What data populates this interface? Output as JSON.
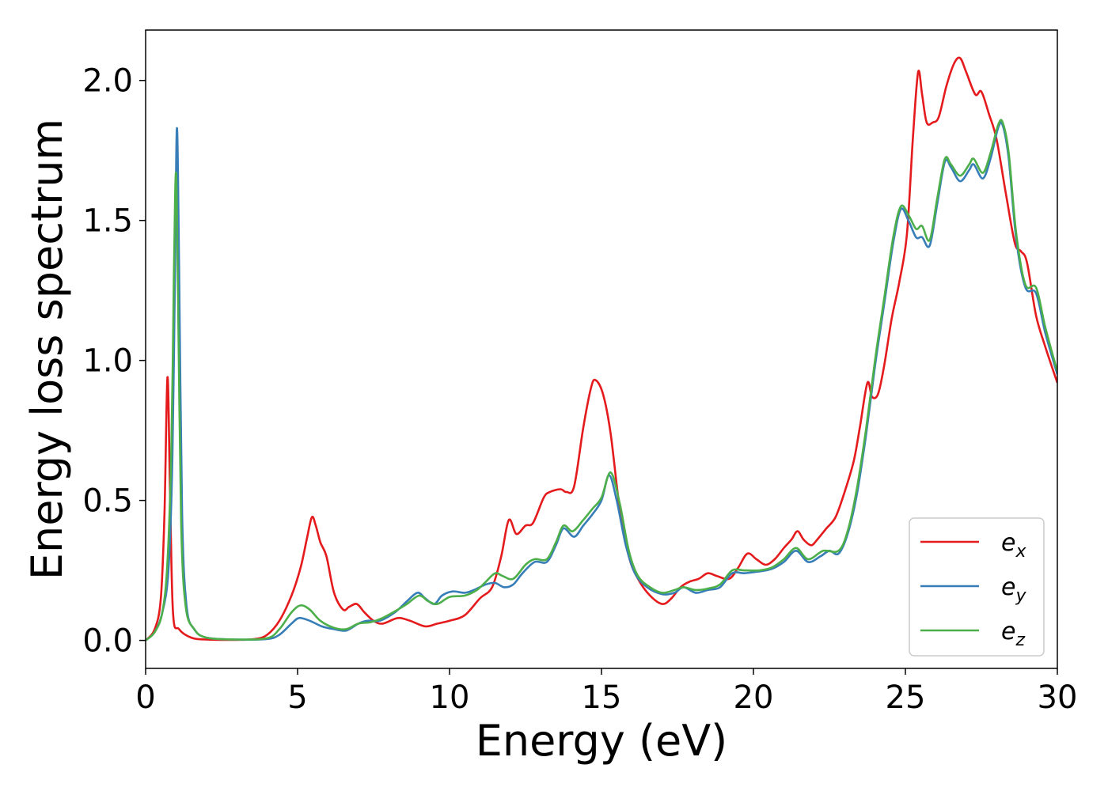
{
  "chart_data": {
    "type": "line",
    "xlabel": "Energy (eV)",
    "ylabel": "Energy loss spectrum",
    "xlim": [
      0,
      30
    ],
    "ylim": [
      -0.1,
      2.18
    ],
    "xticks": [
      "0",
      "5",
      "10",
      "15",
      "20",
      "25",
      "30"
    ],
    "yticks": [
      "0.0",
      "0.5",
      "1.0",
      "1.5",
      "2.0"
    ],
    "grid": false,
    "legend_position": "bottom-right",
    "series": [
      {
        "name": "e",
        "subscript": "x",
        "color": "#e41a1c",
        "points": [
          [
            0,
            0
          ],
          [
            0.3,
            0.04
          ],
          [
            0.5,
            0.15
          ],
          [
            0.62,
            0.45
          ],
          [
            0.72,
            0.94
          ],
          [
            0.8,
            0.55
          ],
          [
            0.9,
            0.1
          ],
          [
            1.1,
            0.04
          ],
          [
            1.5,
            0.01
          ],
          [
            2,
            0.003
          ],
          [
            3,
            0.002
          ],
          [
            3.6,
            0.005
          ],
          [
            4,
            0.02
          ],
          [
            4.4,
            0.07
          ],
          [
            4.8,
            0.16
          ],
          [
            5.1,
            0.26
          ],
          [
            5.3,
            0.36
          ],
          [
            5.47,
            0.44
          ],
          [
            5.6,
            0.41
          ],
          [
            5.75,
            0.35
          ],
          [
            5.95,
            0.3
          ],
          [
            6.2,
            0.17
          ],
          [
            6.5,
            0.11
          ],
          [
            6.7,
            0.12
          ],
          [
            6.95,
            0.13
          ],
          [
            7.2,
            0.1
          ],
          [
            7.5,
            0.07
          ],
          [
            7.8,
            0.06
          ],
          [
            8.3,
            0.08
          ],
          [
            8.7,
            0.07
          ],
          [
            9.2,
            0.05
          ],
          [
            9.6,
            0.06
          ],
          [
            10,
            0.07
          ],
          [
            10.5,
            0.09
          ],
          [
            11,
            0.15
          ],
          [
            11.4,
            0.19
          ],
          [
            11.7,
            0.3
          ],
          [
            11.95,
            0.43
          ],
          [
            12.2,
            0.38
          ],
          [
            12.5,
            0.41
          ],
          [
            12.75,
            0.42
          ],
          [
            13.1,
            0.51
          ],
          [
            13.3,
            0.53
          ],
          [
            13.65,
            0.54
          ],
          [
            13.85,
            0.53
          ],
          [
            14.1,
            0.55
          ],
          [
            14.4,
            0.76
          ],
          [
            14.65,
            0.9
          ],
          [
            14.8,
            0.93
          ],
          [
            15.05,
            0.88
          ],
          [
            15.3,
            0.74
          ],
          [
            15.6,
            0.47
          ],
          [
            15.9,
            0.3
          ],
          [
            16.2,
            0.22
          ],
          [
            16.6,
            0.16
          ],
          [
            17,
            0.13
          ],
          [
            17.3,
            0.15
          ],
          [
            17.6,
            0.19
          ],
          [
            17.9,
            0.21
          ],
          [
            18.2,
            0.22
          ],
          [
            18.5,
            0.24
          ],
          [
            18.8,
            0.23
          ],
          [
            19.2,
            0.22
          ],
          [
            19.5,
            0.26
          ],
          [
            19.8,
            0.31
          ],
          [
            20.1,
            0.29
          ],
          [
            20.4,
            0.27
          ],
          [
            20.7,
            0.29
          ],
          [
            21,
            0.33
          ],
          [
            21.25,
            0.36
          ],
          [
            21.45,
            0.39
          ],
          [
            21.65,
            0.36
          ],
          [
            21.9,
            0.34
          ],
          [
            22.1,
            0.36
          ],
          [
            22.4,
            0.4
          ],
          [
            22.7,
            0.44
          ],
          [
            23,
            0.53
          ],
          [
            23.3,
            0.64
          ],
          [
            23.5,
            0.76
          ],
          [
            23.75,
            0.92
          ],
          [
            23.9,
            0.87
          ],
          [
            24.1,
            0.88
          ],
          [
            24.3,
            0.98
          ],
          [
            24.55,
            1.15
          ],
          [
            24.8,
            1.28
          ],
          [
            25.05,
            1.45
          ],
          [
            25.25,
            1.8
          ],
          [
            25.42,
            2.03
          ],
          [
            25.55,
            1.95
          ],
          [
            25.7,
            1.85
          ],
          [
            25.9,
            1.85
          ],
          [
            26.1,
            1.87
          ],
          [
            26.35,
            1.98
          ],
          [
            26.6,
            2.06
          ],
          [
            26.8,
            2.08
          ],
          [
            27,
            2.03
          ],
          [
            27.3,
            1.95
          ],
          [
            27.5,
            1.96
          ],
          [
            27.75,
            1.88
          ],
          [
            28,
            1.79
          ],
          [
            28.3,
            1.6
          ],
          [
            28.6,
            1.42
          ],
          [
            28.8,
            1.39
          ],
          [
            29,
            1.35
          ],
          [
            29.3,
            1.16
          ],
          [
            29.6,
            1.05
          ],
          [
            30,
            0.92
          ]
        ]
      },
      {
        "name": "e",
        "subscript": "y",
        "color": "#377eb8",
        "points": [
          [
            0,
            0
          ],
          [
            0.3,
            0.03
          ],
          [
            0.55,
            0.1
          ],
          [
            0.75,
            0.25
          ],
          [
            0.88,
            0.65
          ],
          [
            0.97,
            1.35
          ],
          [
            1.03,
            1.83
          ],
          [
            1.1,
            1.35
          ],
          [
            1.2,
            0.45
          ],
          [
            1.35,
            0.12
          ],
          [
            1.6,
            0.04
          ],
          [
            2,
            0.01
          ],
          [
            3,
            0.003
          ],
          [
            4,
            0.005
          ],
          [
            4.4,
            0.02
          ],
          [
            4.8,
            0.06
          ],
          [
            5.05,
            0.08
          ],
          [
            5.4,
            0.07
          ],
          [
            5.8,
            0.05
          ],
          [
            6.2,
            0.04
          ],
          [
            6.6,
            0.035
          ],
          [
            7,
            0.06
          ],
          [
            7.3,
            0.07
          ],
          [
            7.7,
            0.07
          ],
          [
            8.2,
            0.1
          ],
          [
            8.6,
            0.14
          ],
          [
            8.95,
            0.17
          ],
          [
            9.2,
            0.15
          ],
          [
            9.5,
            0.13
          ],
          [
            9.75,
            0.16
          ],
          [
            10.1,
            0.175
          ],
          [
            10.5,
            0.17
          ],
          [
            10.8,
            0.18
          ],
          [
            11.2,
            0.2
          ],
          [
            11.5,
            0.205
          ],
          [
            11.8,
            0.19
          ],
          [
            12.1,
            0.2
          ],
          [
            12.4,
            0.24
          ],
          [
            12.8,
            0.28
          ],
          [
            13.2,
            0.28
          ],
          [
            13.5,
            0.34
          ],
          [
            13.75,
            0.4
          ],
          [
            14.1,
            0.37
          ],
          [
            14.4,
            0.41
          ],
          [
            14.7,
            0.45
          ],
          [
            15,
            0.5
          ],
          [
            15.25,
            0.59
          ],
          [
            15.5,
            0.5
          ],
          [
            15.8,
            0.34
          ],
          [
            16.1,
            0.24
          ],
          [
            16.5,
            0.19
          ],
          [
            17,
            0.165
          ],
          [
            17.4,
            0.17
          ],
          [
            17.7,
            0.19
          ],
          [
            18.1,
            0.17
          ],
          [
            18.5,
            0.18
          ],
          [
            18.9,
            0.19
          ],
          [
            19.3,
            0.24
          ],
          [
            19.7,
            0.24
          ],
          [
            20.1,
            0.245
          ],
          [
            20.6,
            0.255
          ],
          [
            21,
            0.28
          ],
          [
            21.4,
            0.32
          ],
          [
            21.8,
            0.28
          ],
          [
            22.2,
            0.3
          ],
          [
            22.5,
            0.32
          ],
          [
            22.8,
            0.31
          ],
          [
            23.1,
            0.38
          ],
          [
            23.4,
            0.52
          ],
          [
            23.7,
            0.73
          ],
          [
            24,
            0.98
          ],
          [
            24.3,
            1.2
          ],
          [
            24.6,
            1.42
          ],
          [
            24.85,
            1.54
          ],
          [
            25.1,
            1.5
          ],
          [
            25.35,
            1.44
          ],
          [
            25.55,
            1.44
          ],
          [
            25.8,
            1.41
          ],
          [
            26.05,
            1.56
          ],
          [
            26.3,
            1.71
          ],
          [
            26.5,
            1.69
          ],
          [
            26.8,
            1.64
          ],
          [
            27.1,
            1.68
          ],
          [
            27.25,
            1.7
          ],
          [
            27.55,
            1.65
          ],
          [
            27.8,
            1.72
          ],
          [
            28.05,
            1.83
          ],
          [
            28.2,
            1.84
          ],
          [
            28.4,
            1.72
          ],
          [
            28.65,
            1.43
          ],
          [
            28.95,
            1.26
          ],
          [
            29.3,
            1.24
          ],
          [
            29.6,
            1.1
          ],
          [
            30,
            0.95
          ]
        ]
      },
      {
        "name": "e",
        "subscript": "z",
        "color": "#4daf4a",
        "points": [
          [
            0,
            0
          ],
          [
            0.3,
            0.03
          ],
          [
            0.55,
            0.1
          ],
          [
            0.72,
            0.28
          ],
          [
            0.85,
            0.7
          ],
          [
            0.93,
            1.3
          ],
          [
            1.0,
            1.67
          ],
          [
            1.07,
            1.2
          ],
          [
            1.17,
            0.42
          ],
          [
            1.32,
            0.12
          ],
          [
            1.6,
            0.04
          ],
          [
            2,
            0.01
          ],
          [
            3,
            0.003
          ],
          [
            4,
            0.008
          ],
          [
            4.4,
            0.04
          ],
          [
            4.8,
            0.1
          ],
          [
            5.1,
            0.125
          ],
          [
            5.4,
            0.11
          ],
          [
            5.75,
            0.07
          ],
          [
            6.2,
            0.045
          ],
          [
            6.6,
            0.04
          ],
          [
            7,
            0.06
          ],
          [
            7.4,
            0.065
          ],
          [
            7.8,
            0.08
          ],
          [
            8.3,
            0.11
          ],
          [
            8.6,
            0.13
          ],
          [
            9,
            0.16
          ],
          [
            9.3,
            0.14
          ],
          [
            9.6,
            0.13
          ],
          [
            10,
            0.155
          ],
          [
            10.5,
            0.16
          ],
          [
            10.9,
            0.18
          ],
          [
            11.2,
            0.21
          ],
          [
            11.5,
            0.24
          ],
          [
            11.75,
            0.23
          ],
          [
            12.1,
            0.22
          ],
          [
            12.5,
            0.27
          ],
          [
            12.8,
            0.29
          ],
          [
            13.2,
            0.29
          ],
          [
            13.5,
            0.35
          ],
          [
            13.75,
            0.41
          ],
          [
            14.05,
            0.39
          ],
          [
            14.4,
            0.43
          ],
          [
            14.7,
            0.47
          ],
          [
            15,
            0.51
          ],
          [
            15.3,
            0.6
          ],
          [
            15.6,
            0.49
          ],
          [
            15.9,
            0.32
          ],
          [
            16.2,
            0.23
          ],
          [
            16.6,
            0.19
          ],
          [
            17,
            0.17
          ],
          [
            17.4,
            0.18
          ],
          [
            17.7,
            0.19
          ],
          [
            18.1,
            0.18
          ],
          [
            18.5,
            0.185
          ],
          [
            18.9,
            0.2
          ],
          [
            19.3,
            0.25
          ],
          [
            19.7,
            0.25
          ],
          [
            20.2,
            0.25
          ],
          [
            20.6,
            0.26
          ],
          [
            21,
            0.29
          ],
          [
            21.4,
            0.33
          ],
          [
            21.8,
            0.29
          ],
          [
            22.3,
            0.32
          ],
          [
            22.8,
            0.32
          ],
          [
            23.1,
            0.39
          ],
          [
            23.4,
            0.54
          ],
          [
            23.7,
            0.75
          ],
          [
            24,
            1.0
          ],
          [
            24.3,
            1.22
          ],
          [
            24.6,
            1.44
          ],
          [
            24.85,
            1.55
          ],
          [
            25.1,
            1.52
          ],
          [
            25.35,
            1.47
          ],
          [
            25.55,
            1.48
          ],
          [
            25.8,
            1.43
          ],
          [
            26.05,
            1.58
          ],
          [
            26.3,
            1.72
          ],
          [
            26.5,
            1.7
          ],
          [
            26.8,
            1.66
          ],
          [
            27.1,
            1.7
          ],
          [
            27.25,
            1.72
          ],
          [
            27.55,
            1.67
          ],
          [
            27.8,
            1.74
          ],
          [
            28.05,
            1.84
          ],
          [
            28.2,
            1.85
          ],
          [
            28.4,
            1.74
          ],
          [
            28.65,
            1.45
          ],
          [
            28.95,
            1.27
          ],
          [
            29.3,
            1.26
          ],
          [
            29.6,
            1.12
          ],
          [
            30,
            0.96
          ]
        ]
      }
    ]
  }
}
